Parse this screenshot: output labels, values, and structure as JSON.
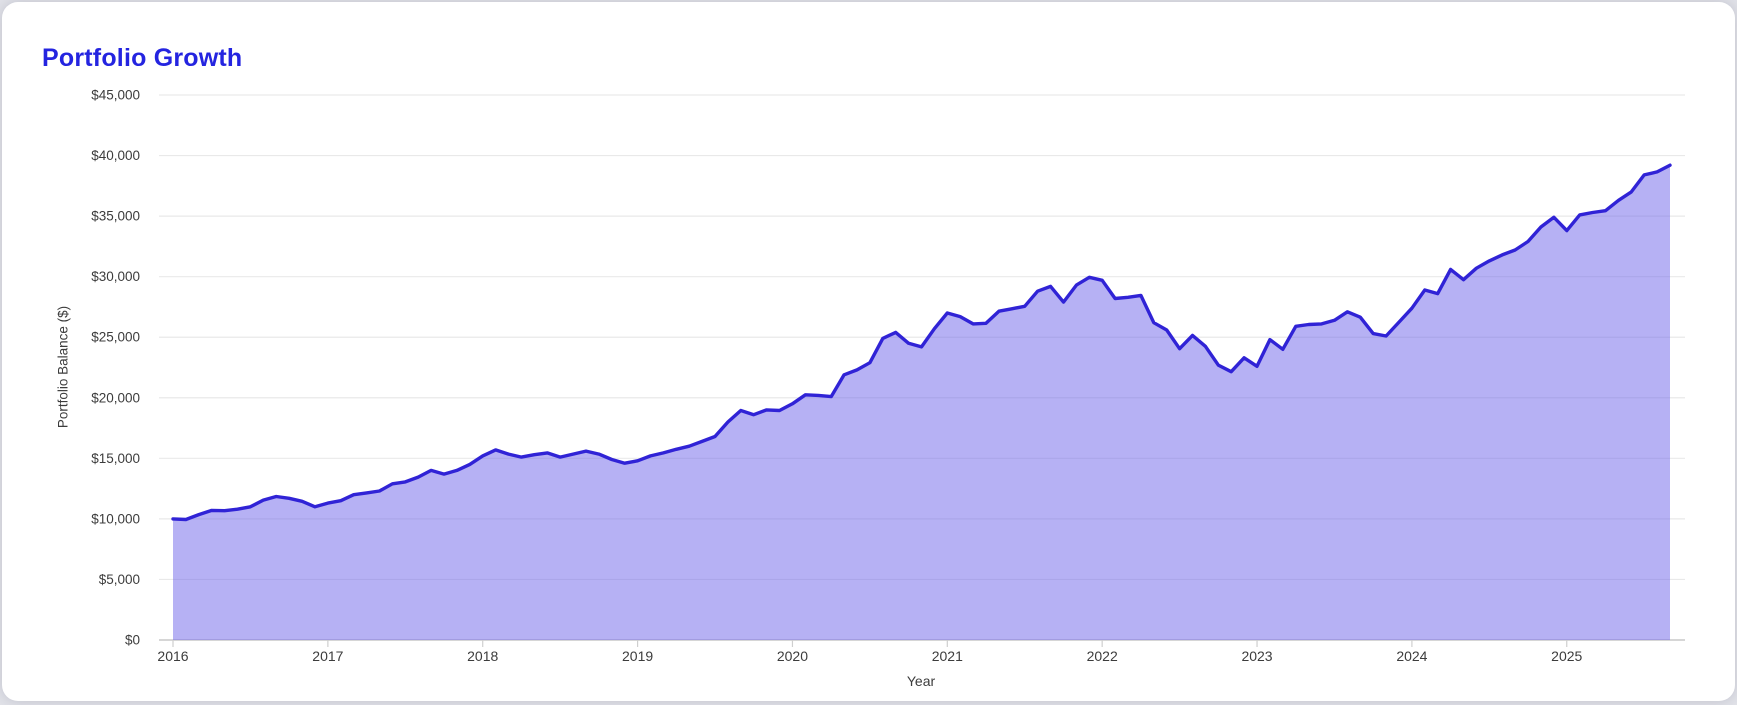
{
  "page": {
    "title": "Portfolio Growth"
  },
  "colors": {
    "title": "#2424e0",
    "line": "#3023d6",
    "fill": "rgba(110,99,234,0.5)",
    "grid": "#e9e9e9",
    "axis_line": "#c8c8c8",
    "tick_mark": "#cfcfcf",
    "tick_text": "#3c3c3c"
  },
  "chart_data": {
    "type": "area",
    "title": "Portfolio Growth",
    "xlabel": "Year",
    "ylabel": "Portfolio Balance ($)",
    "x_start": "2016-01",
    "x_interval": "monthly",
    "x_end": "2025-09",
    "ylim": [
      0,
      45000
    ],
    "grid": "horizontal-only",
    "legend_position": "none",
    "y_ticks": [
      {
        "value": 0,
        "label": "$0"
      },
      {
        "value": 5000,
        "label": "$5,000"
      },
      {
        "value": 10000,
        "label": "$10,000"
      },
      {
        "value": 15000,
        "label": "$15,000"
      },
      {
        "value": 20000,
        "label": "$20,000"
      },
      {
        "value": 25000,
        "label": "$25,000"
      },
      {
        "value": 30000,
        "label": "$30,000"
      },
      {
        "value": 35000,
        "label": "$35,000"
      },
      {
        "value": 40000,
        "label": "$40,000"
      },
      {
        "value": 45000,
        "label": "$45,000"
      }
    ],
    "x_ticks": [
      {
        "year": 2016,
        "label": "2016"
      },
      {
        "year": 2017,
        "label": "2017"
      },
      {
        "year": 2018,
        "label": "2018"
      },
      {
        "year": 2019,
        "label": "2019"
      },
      {
        "year": 2020,
        "label": "2020"
      },
      {
        "year": 2021,
        "label": "2021"
      },
      {
        "year": 2022,
        "label": "2022"
      },
      {
        "year": 2023,
        "label": "2023"
      },
      {
        "year": 2024,
        "label": "2024"
      },
      {
        "year": 2025,
        "label": "2025"
      }
    ],
    "series": [
      {
        "name": "Portfolio Balance",
        "values": [
          10000,
          9950,
          10350,
          10700,
          10680,
          10800,
          11000,
          11550,
          11850,
          11700,
          11450,
          11000,
          11300,
          11500,
          12000,
          12150,
          12300,
          12900,
          13050,
          13450,
          14000,
          13700,
          14000,
          14500,
          15200,
          15700,
          15350,
          15100,
          15300,
          15450,
          15100,
          15350,
          15600,
          15350,
          14900,
          14600,
          14800,
          15200,
          15450,
          15750,
          16000,
          16400,
          16800,
          18000,
          18950,
          18600,
          19000,
          18950,
          19500,
          20250,
          20200,
          20100,
          21900,
          22300,
          22900,
          24900,
          25400,
          24500,
          24200,
          25700,
          27000,
          26700,
          26100,
          26150,
          27150,
          27350,
          27550,
          28800,
          29200,
          27900,
          29300,
          29950,
          29700,
          28200,
          28300,
          28450,
          26200,
          25600,
          24050,
          25150,
          24250,
          22700,
          22150,
          23300,
          22600,
          24800,
          24000,
          25900,
          26050,
          26100,
          26400,
          27100,
          26650,
          25300,
          25100,
          26250,
          27400,
          28900,
          28600,
          30600,
          29750,
          30700,
          31300,
          31800,
          32200,
          32900,
          34100,
          34900,
          33800,
          35100,
          35300,
          35450,
          36300,
          37000,
          38400,
          38650,
          39200
        ]
      }
    ]
  }
}
